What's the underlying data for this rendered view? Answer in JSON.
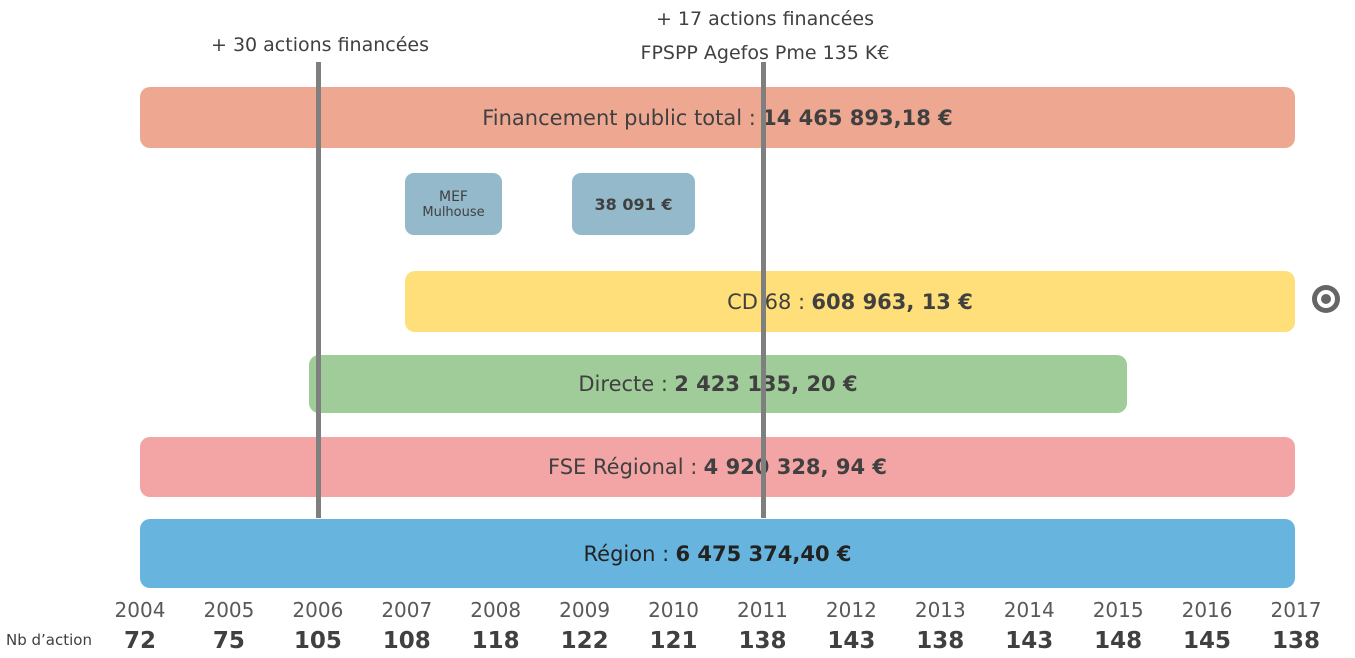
{
  "annotations": [
    {
      "lines": [
        "+ 30 actions financées"
      ]
    },
    {
      "lines": [
        "+ 17 actions financées",
        "FPSPP Agefos Pme 135 K€"
      ]
    }
  ],
  "bars": [
    {
      "label": "Financement public total :",
      "amount": "14 465 893,18 €"
    },
    {
      "label": "CD 68 :",
      "amount": "608 963, 13 €"
    },
    {
      "label": "Directe :",
      "amount": "2 423 135, 20 €"
    },
    {
      "label": "FSE Régional :",
      "amount": "4 920 328, 94 €"
    },
    {
      "label": "Région :",
      "amount": "6 475 374,40 €"
    }
  ],
  "boxes": [
    {
      "lines": [
        "MEF",
        "Mulhouse"
      ]
    },
    {
      "amount": "38 091 €"
    }
  ],
  "timeline": {
    "row_label": "Nb d’action",
    "years": [
      2004,
      2005,
      2006,
      2007,
      2008,
      2009,
      2010,
      2011,
      2012,
      2013,
      2014,
      2015,
      2016,
      2017
    ],
    "actions": [
      72,
      75,
      105,
      108,
      118,
      122,
      121,
      138,
      143,
      138,
      143,
      148,
      145,
      138
    ]
  }
}
